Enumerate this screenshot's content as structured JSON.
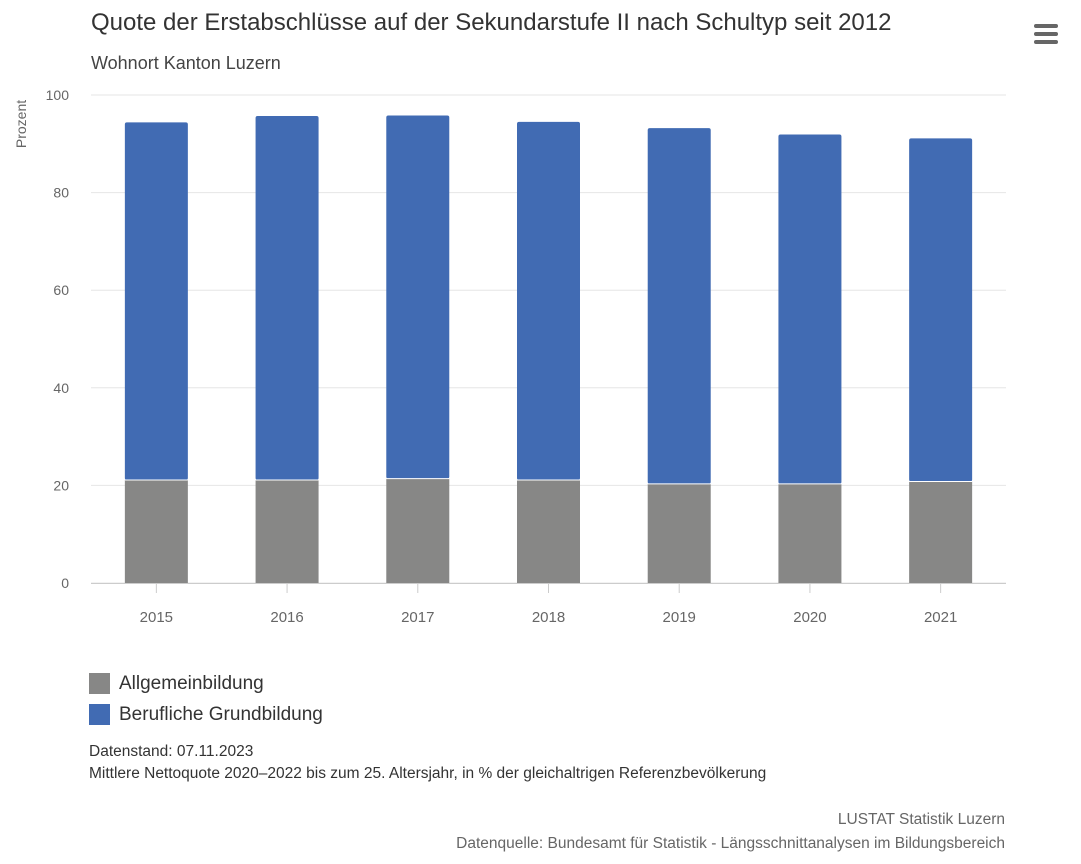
{
  "header": {
    "title": "Quote der Erstabschlüsse auf der Sekundarstufe II nach Schultyp seit 2012",
    "subtitle": "Wohnort Kanton Luzern"
  },
  "menu": {
    "icon": "hamburger-menu-icon"
  },
  "chart_data": {
    "type": "bar",
    "stacked": true,
    "categories": [
      "2015",
      "2016",
      "2017",
      "2018",
      "2019",
      "2020",
      "2021"
    ],
    "series": [
      {
        "name": "Allgemeinbildung",
        "color": "#878786",
        "values": [
          21.1,
          21.1,
          21.4,
          21.1,
          20.3,
          20.3,
          20.8
        ]
      },
      {
        "name": "Berufliche Grundbildung",
        "color": "#416bb3",
        "values": [
          73.3,
          74.6,
          74.4,
          73.4,
          72.9,
          71.6,
          70.3
        ]
      }
    ],
    "ylabel": "Prozent",
    "ylim": [
      0,
      100
    ],
    "yticks": [
      "0",
      "20",
      "40",
      "60",
      "80",
      "100"
    ],
    "grid": true,
    "legend_position": "bottom-left"
  },
  "notes": {
    "datenstand": "Datenstand: 07.11.2023",
    "definition": "Mittlere Nettoquote 2020–2022 bis zum 25. Altersjahr, in % der gleichaltrigen Referenzbevölkerung"
  },
  "credits": {
    "publisher": "LUSTAT Statistik Luzern",
    "source": "Datenquelle: Bundesamt für Statistik - Längsschnittanalysen im Bildungsbereich"
  }
}
